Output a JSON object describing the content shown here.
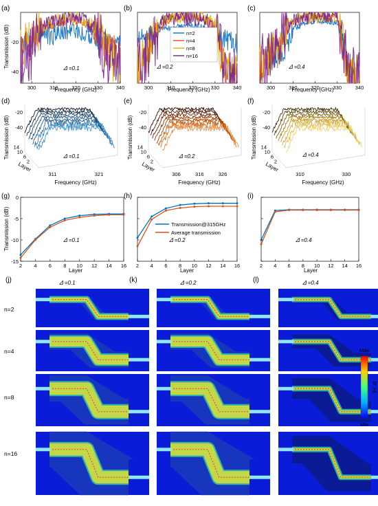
{
  "colors": {
    "n2": "#1f77c4",
    "n4": "#e05a1c",
    "n8": "#e8b020",
    "n16": "#7e2f8e",
    "blue": "#0072bd",
    "orange": "#d95319",
    "field_bg": "#0a1cd8"
  },
  "panels_top": {
    "a": {
      "label": "(a)",
      "annotation": "𝛥 =0.1"
    },
    "b": {
      "label": "(b)",
      "annotation": "𝛥 =0.2"
    },
    "c": {
      "label": "(c)",
      "annotation": "𝛥 =0.4"
    },
    "ylabel": "Transmission (dB)",
    "xlabel": "Frequency (GHz)",
    "xticks": [
      "300",
      "310",
      "320",
      "330",
      "340"
    ],
    "yticks": [
      "-40",
      "-20"
    ]
  },
  "panels_3d": {
    "d": {
      "label": "(d)",
      "annotation": "𝛥 =0.1",
      "xticks": [
        "311",
        "321"
      ]
    },
    "e": {
      "label": "(e)",
      "annotation": "𝛥 =0.2",
      "xticks": [
        "306",
        "316",
        "326"
      ]
    },
    "f": {
      "label": "(f)",
      "annotation": "𝛥 =0.4",
      "xticks": [
        "310",
        "330"
      ]
    },
    "ylabel": "Transmission (dB)",
    "xlabel": "Frequency (GHz)",
    "layer_label": "Layer",
    "layer_ticks": [
      "14",
      "10",
      "6",
      "2"
    ],
    "zticks": [
      "-20",
      "-40"
    ]
  },
  "panels_layer": {
    "g": {
      "label": "(g)",
      "annotation": "𝛥 =0.1"
    },
    "h": {
      "label": "(h)",
      "annotation": "𝛥 =0.2"
    },
    "i": {
      "label": "(i)",
      "annotation": "𝛥 =0.4"
    },
    "ylabel": "Transmission (dB)",
    "xlabel": "Layer",
    "xticks": [
      "2",
      "4",
      "6",
      "8",
      "10",
      "12",
      "14",
      "16"
    ],
    "yticks": [
      "0",
      "-5",
      "-10",
      "-15"
    ],
    "legend": [
      "Transmission@315GHz",
      "Average transmission"
    ]
  },
  "legend_top": [
    "n=2",
    "n=4",
    "n=8",
    "n=16"
  ],
  "field_maps": {
    "labels": [
      "(j)",
      "(k)",
      "(l)"
    ],
    "col_titles": [
      "𝛥 =0.1",
      "𝛥 =0.2",
      "𝛥 =0.4"
    ],
    "row_labels": [
      "n=2",
      "n=4",
      "n=8",
      "n=16"
    ],
    "colorbar": {
      "max": "Max",
      "min": "Min",
      "quantity": "|H_z|"
    }
  },
  "chart_data": [
    {
      "id": "a",
      "type": "line",
      "xlabel": "Frequency (GHz)",
      "ylabel": "Transmission (dB)",
      "xlim": [
        295,
        340
      ],
      "ylim": [
        -48,
        0
      ],
      "series": [
        {
          "name": "n=2",
          "x": [
            295,
            300,
            305,
            310,
            315,
            320,
            325,
            330,
            335,
            340
          ],
          "y": [
            -22,
            -18,
            -15,
            -16,
            -13,
            -12,
            -15,
            -18,
            -20,
            -22
          ]
        },
        {
          "name": "n=4",
          "x": [
            295,
            300,
            305,
            310,
            315,
            320,
            325,
            330,
            335,
            340
          ],
          "y": [
            -30,
            -20,
            -12,
            -8,
            -6,
            -5,
            -8,
            -15,
            -25,
            -28
          ]
        },
        {
          "name": "n=8",
          "x": [
            295,
            300,
            305,
            310,
            315,
            320,
            325,
            330,
            335,
            340
          ],
          "y": [
            -25,
            -18,
            -10,
            -6,
            -4,
            -4,
            -6,
            -12,
            -30,
            -35
          ]
        },
        {
          "name": "n=16",
          "x": [
            295,
            300,
            305,
            310,
            315,
            320,
            325,
            330,
            335,
            340
          ],
          "y": [
            -35,
            -25,
            -10,
            -5,
            -4,
            -4,
            -6,
            -15,
            -35,
            -40
          ]
        }
      ]
    },
    {
      "id": "b",
      "type": "line",
      "xlabel": "Frequency (GHz)",
      "ylabel": "Transmission (dB)",
      "xlim": [
        295,
        340
      ],
      "ylim": [
        -48,
        0
      ],
      "series": [
        {
          "name": "n=2",
          "x": [
            295,
            300,
            305,
            310,
            315,
            320,
            325,
            330,
            335,
            340
          ],
          "y": [
            -20,
            -16,
            -12,
            -10,
            -9,
            -9,
            -10,
            -13,
            -18,
            -22
          ]
        },
        {
          "name": "n=4",
          "x": [
            295,
            300,
            305,
            310,
            315,
            320,
            325,
            330,
            335,
            340
          ],
          "y": [
            -40,
            -28,
            -10,
            -4,
            -3,
            -3,
            -4,
            -10,
            -40,
            -45
          ]
        },
        {
          "name": "n=8",
          "x": [
            295,
            300,
            305,
            310,
            315,
            320,
            325,
            330,
            335,
            340
          ],
          "y": [
            -35,
            -25,
            -8,
            -3,
            -3,
            -3,
            -3,
            -8,
            -42,
            -46
          ]
        },
        {
          "name": "n=16",
          "x": [
            295,
            300,
            305,
            310,
            315,
            320,
            325,
            330,
            335,
            340
          ],
          "y": [
            -35,
            -30,
            -8,
            -3,
            -3,
            -3,
            -3,
            -10,
            -42,
            -46
          ]
        }
      ]
    },
    {
      "id": "c",
      "type": "line",
      "xlabel": "Frequency (GHz)",
      "ylabel": "Transmission (dB)",
      "xlim": [
        295,
        340
      ],
      "ylim": [
        -48,
        0
      ],
      "series": [
        {
          "name": "n=2",
          "x": [
            295,
            300,
            305,
            310,
            315,
            320,
            325,
            330,
            333,
            335,
            340
          ],
          "y": [
            -40,
            -35,
            -30,
            -12,
            -7,
            -6,
            -6,
            -7,
            -20,
            -40,
            -45
          ]
        },
        {
          "name": "n=4",
          "x": [
            295,
            300,
            305,
            310,
            315,
            320,
            325,
            330,
            333,
            335,
            340
          ],
          "y": [
            -38,
            -30,
            -20,
            -6,
            -3,
            -3,
            -3,
            -3,
            -25,
            -42,
            -46
          ]
        },
        {
          "name": "n=8",
          "x": [
            295,
            300,
            305,
            310,
            315,
            320,
            325,
            330,
            333,
            335,
            340
          ],
          "y": [
            -36,
            -28,
            -18,
            -5,
            -3,
            -3,
            -3,
            -3,
            -25,
            -42,
            -46
          ]
        },
        {
          "name": "n=16",
          "x": [
            295,
            300,
            305,
            310,
            315,
            320,
            325,
            330,
            333,
            335,
            340
          ],
          "y": [
            -36,
            -28,
            -18,
            -5,
            -3,
            -3,
            -3,
            -3,
            -25,
            -42,
            -46
          ]
        }
      ]
    },
    {
      "id": "g",
      "type": "line",
      "xlabel": "Layer",
      "ylabel": "Transmission (dB)",
      "xlim": [
        2,
        16
      ],
      "ylim": [
        -15,
        0
      ],
      "series": [
        {
          "name": "Transmission@315GHz",
          "x": [
            2,
            4,
            6,
            8,
            10,
            12,
            14,
            16
          ],
          "y": [
            -13.5,
            -9.8,
            -6.6,
            -5.0,
            -4.3,
            -4.0,
            -3.9,
            -3.9
          ]
        },
        {
          "name": "Average transmission",
          "x": [
            2,
            4,
            6,
            8,
            10,
            12,
            14,
            16
          ],
          "y": [
            -14.2,
            -10.0,
            -7.0,
            -5.4,
            -4.7,
            -4.3,
            -4.1,
            -4.1
          ]
        }
      ]
    },
    {
      "id": "h",
      "type": "line",
      "xlabel": "Layer",
      "ylabel": "Transmission (dB)",
      "xlim": [
        2,
        16
      ],
      "ylim": [
        -15,
        0
      ],
      "series": [
        {
          "name": "Transmission@315GHz",
          "x": [
            2,
            4,
            6,
            8,
            10,
            12,
            14,
            16
          ],
          "y": [
            -9.5,
            -4.5,
            -2.6,
            -1.8,
            -1.5,
            -1.4,
            -1.4,
            -1.4
          ]
        },
        {
          "name": "Average transmission",
          "x": [
            2,
            4,
            6,
            8,
            10,
            12,
            14,
            16
          ],
          "y": [
            -11.5,
            -5.2,
            -3.1,
            -2.5,
            -2.2,
            -2.1,
            -2.1,
            -2.1
          ]
        }
      ]
    },
    {
      "id": "i",
      "type": "line",
      "xlabel": "Layer",
      "ylabel": "Transmission (dB)",
      "xlim": [
        2,
        16
      ],
      "ylim": [
        -15,
        0
      ],
      "series": [
        {
          "name": "Transmission@315GHz",
          "x": [
            2,
            4,
            6,
            8,
            10,
            12,
            14,
            16
          ],
          "y": [
            -10.0,
            -3.1,
            -2.9,
            -2.9,
            -2.9,
            -2.9,
            -2.9,
            -2.9
          ]
        },
        {
          "name": "Average transmission",
          "x": [
            2,
            4,
            6,
            8,
            10,
            12,
            14,
            16
          ],
          "y": [
            -11.0,
            -3.4,
            -3.0,
            -3.0,
            -3.0,
            -3.0,
            -3.0,
            -3.0
          ]
        }
      ]
    }
  ]
}
